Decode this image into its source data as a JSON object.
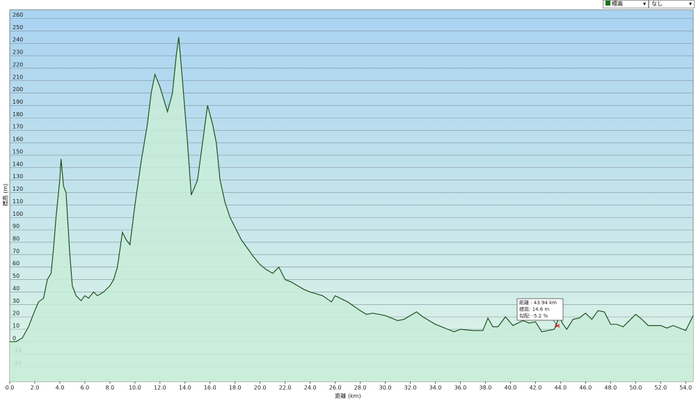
{
  "chart_data": {
    "type": "area",
    "x_label": "距離 (km)",
    "y_label": "標高 (m)",
    "x": [
      0,
      0.5,
      1.0,
      1.5,
      2.0,
      2.3,
      2.7,
      3.0,
      3.3,
      3.5,
      3.7,
      4.0,
      4.1,
      4.3,
      4.5,
      4.8,
      5.0,
      5.3,
      5.7,
      6.0,
      6.3,
      6.7,
      7.0,
      7.5,
      8.0,
      8.3,
      8.6,
      9.0,
      9.3,
      9.6,
      10.0,
      10.5,
      11.0,
      11.3,
      11.6,
      12.0,
      12.3,
      12.6,
      13.0,
      13.3,
      13.5,
      13.8,
      14.2,
      14.5,
      15.0,
      15.4,
      15.8,
      16.2,
      16.5,
      16.8,
      17.2,
      17.6,
      18.0,
      18.5,
      19.0,
      19.5,
      20.0,
      20.5,
      21.0,
      21.5,
      22.0,
      22.5,
      23.0,
      23.5,
      24.0,
      25.0,
      25.7,
      26.0,
      27.0,
      28.0,
      28.5,
      29.0,
      30.0,
      31.0,
      31.5,
      32.5,
      33.0,
      34.0,
      35.0,
      35.5,
      36.0,
      37.0,
      37.8,
      38.2,
      38.6,
      39.0,
      39.6,
      40.2,
      41.0,
      41.5,
      42.0,
      42.5,
      43.0,
      43.5,
      43.9,
      44.2,
      44.5,
      45.0,
      45.5,
      46.0,
      46.5,
      47.0,
      47.5,
      48.0,
      48.5,
      49.0,
      50.0,
      50.5,
      51.0,
      52.0,
      52.5,
      53.0,
      54.0,
      54.3,
      54.6
    ],
    "series": [
      {
        "name": "標高",
        "color": "#1d4f1d",
        "fill": "#c8ecd8",
        "values": [
          0,
          0,
          3,
          12,
          25,
          32,
          35,
          50,
          55,
          75,
          100,
          130,
          147,
          125,
          120,
          70,
          45,
          37,
          33,
          37,
          35,
          40,
          37,
          40,
          45,
          50,
          60,
          88,
          82,
          78,
          110,
          145,
          175,
          200,
          215,
          205,
          195,
          185,
          200,
          230,
          245,
          210,
          160,
          118,
          130,
          160,
          190,
          175,
          160,
          130,
          112,
          100,
          92,
          82,
          75,
          68,
          62,
          58,
          55,
          60,
          50,
          48,
          45,
          42,
          40,
          37,
          32,
          37,
          32,
          25,
          22,
          23,
          21,
          17,
          18,
          24,
          20,
          14,
          10,
          8,
          10,
          9,
          9,
          19,
          12,
          12,
          20,
          13,
          17,
          15,
          16,
          8,
          9,
          10,
          20,
          14,
          10,
          18,
          19,
          23,
          18,
          25,
          24,
          14,
          14,
          12,
          22,
          18,
          13,
          13,
          11,
          13,
          9,
          15,
          21
        ]
      }
    ],
    "xlim": [
      0,
      54.6
    ],
    "ylim": [
      -32,
      267
    ],
    "xticks": [
      {
        "value": 0,
        "label": "0.0"
      },
      {
        "value": 2,
        "label": "2.0"
      },
      {
        "value": 4,
        "label": "4.0"
      },
      {
        "value": 6,
        "label": "6.0"
      },
      {
        "value": 8,
        "label": "8.0"
      },
      {
        "value": 10,
        "label": "10.0"
      },
      {
        "value": 12,
        "label": "12.0"
      },
      {
        "value": 14,
        "label": "14.0"
      },
      {
        "value": 16,
        "label": "16.0"
      },
      {
        "value": 18,
        "label": "18.0"
      },
      {
        "value": 20,
        "label": "20.0"
      },
      {
        "value": 22,
        "label": "22.0"
      },
      {
        "value": 24,
        "label": "24.0"
      },
      {
        "value": 26,
        "label": "26.0"
      },
      {
        "value": 28,
        "label": "28.0"
      },
      {
        "value": 30,
        "label": "30.0"
      },
      {
        "value": 32,
        "label": "32.0"
      },
      {
        "value": 34,
        "label": "34.0"
      },
      {
        "value": 36,
        "label": "36.0"
      },
      {
        "value": 38,
        "label": "38.0"
      },
      {
        "value": 40,
        "label": "40.0"
      },
      {
        "value": 42,
        "label": "42.0"
      },
      {
        "value": 44,
        "label": "44.0"
      },
      {
        "value": 46,
        "label": "46.0"
      },
      {
        "value": 48,
        "label": "48.0"
      },
      {
        "value": 50,
        "label": "50.0"
      },
      {
        "value": 52,
        "label": "52.0"
      },
      {
        "value": 54,
        "label": "54.0"
      }
    ],
    "yticks": [
      -20,
      -10,
      0,
      10,
      20,
      30,
      40,
      50,
      60,
      70,
      80,
      90,
      100,
      110,
      120,
      130,
      140,
      150,
      160,
      170,
      180,
      190,
      200,
      210,
      220,
      230,
      240,
      250,
      260
    ],
    "grid": true,
    "tooltip": [
      "距離 : 43.94 km",
      "標高: 14.6 m",
      "勾配: -5.2 %"
    ]
  },
  "controls": {
    "series_select": "標高",
    "option_select": "なし"
  }
}
